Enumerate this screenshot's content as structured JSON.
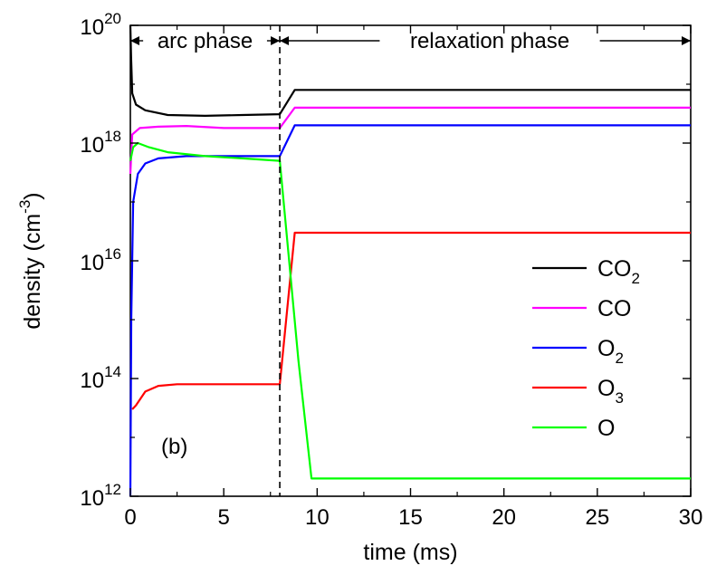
{
  "chart_data": {
    "type": "line",
    "panel_label": "(b)",
    "xlabel": "time (ms)",
    "ylabel": {
      "text": "density (cm",
      "exponent": "-3",
      "suffix": ")"
    },
    "x_scale": "linear",
    "y_scale": "log",
    "xlim": [
      0,
      30
    ],
    "ylim": [
      1000000000000.0,
      1e+20
    ],
    "x_ticks": [
      0,
      5,
      10,
      15,
      20,
      25,
      30
    ],
    "y_ticks": [
      {
        "value": 1000000000000.0,
        "base": "10",
        "exp": "12"
      },
      {
        "value": 100000000000000.0,
        "base": "10",
        "exp": "14"
      },
      {
        "value": 1e+16,
        "base": "10",
        "exp": "16"
      },
      {
        "value": 1e+18,
        "base": "10",
        "exp": "18"
      },
      {
        "value": 1e+20,
        "base": "10",
        "exp": "20"
      }
    ],
    "phase_boundary_x": 8,
    "phases": [
      {
        "label": "arc phase",
        "start": 0,
        "end": 8
      },
      {
        "label": "relaxation phase",
        "start": 8,
        "end": 30
      }
    ],
    "legend_position": "right-center",
    "series": [
      {
        "name": "CO",
        "subscript": "2",
        "color": "#000000",
        "points": [
          [
            0,
            1e+20
          ],
          [
            0.04,
            3e+19
          ],
          [
            0.1,
            7e+18
          ],
          [
            0.3,
            4.5e+18
          ],
          [
            0.8,
            3.6e+18
          ],
          [
            2,
            3e+18
          ],
          [
            4,
            2.9e+18
          ],
          [
            6,
            3e+18
          ],
          [
            8,
            3.1e+18
          ],
          [
            8.8,
            8e+18
          ],
          [
            15,
            8e+18
          ],
          [
            30,
            8e+18
          ]
        ]
      },
      {
        "name": "CO",
        "subscript": "",
        "color": "#ff00ff",
        "points": [
          [
            0,
            3e+17
          ],
          [
            0.1,
            1.4e+18
          ],
          [
            0.5,
            1.8e+18
          ],
          [
            1.5,
            1.9e+18
          ],
          [
            3,
            1.95e+18
          ],
          [
            5,
            1.8e+18
          ],
          [
            8,
            1.8e+18
          ],
          [
            8.8,
            4e+18
          ],
          [
            15,
            4e+18
          ],
          [
            30,
            4e+18
          ]
        ]
      },
      {
        "name": "O",
        "subscript": "2",
        "color": "#0000ff",
        "points": [
          [
            0,
            1000000000000.0
          ],
          [
            0.05,
            1000000000000000.0
          ],
          [
            0.15,
            1e+17
          ],
          [
            0.4,
            3e+17
          ],
          [
            0.8,
            4.5e+17
          ],
          [
            1.5,
            5.5e+17
          ],
          [
            3,
            6e+17
          ],
          [
            5,
            6e+17
          ],
          [
            8,
            6e+17
          ],
          [
            8.8,
            2e+18
          ],
          [
            15,
            2e+18
          ],
          [
            30,
            2e+18
          ]
        ]
      },
      {
        "name": "O",
        "subscript": "3",
        "color": "#ff0000",
        "points": [
          [
            0.1,
            30000000000000.0
          ],
          [
            0.3,
            35000000000000.0
          ],
          [
            0.8,
            60000000000000.0
          ],
          [
            1.5,
            75000000000000.0
          ],
          [
            2.5,
            80000000000000.0
          ],
          [
            5,
            80000000000000.0
          ],
          [
            8,
            80000000000000.0
          ],
          [
            8.8,
            3e+16
          ],
          [
            15,
            3e+16
          ],
          [
            30,
            3e+16
          ]
        ]
      },
      {
        "name": "O",
        "subscript": "",
        "color": "#00ff00",
        "points": [
          [
            0,
            5e+17
          ],
          [
            0.15,
            8.5e+17
          ],
          [
            0.4,
            1e+18
          ],
          [
            1,
            8.5e+17
          ],
          [
            2,
            7e+17
          ],
          [
            4,
            6e+17
          ],
          [
            6,
            5.5e+17
          ],
          [
            8,
            5e+17
          ],
          [
            9,
            200000000000000.0
          ],
          [
            9.7,
            2000000000000.0
          ],
          [
            15,
            2000000000000.0
          ],
          [
            30,
            2000000000000.0
          ]
        ]
      }
    ]
  }
}
